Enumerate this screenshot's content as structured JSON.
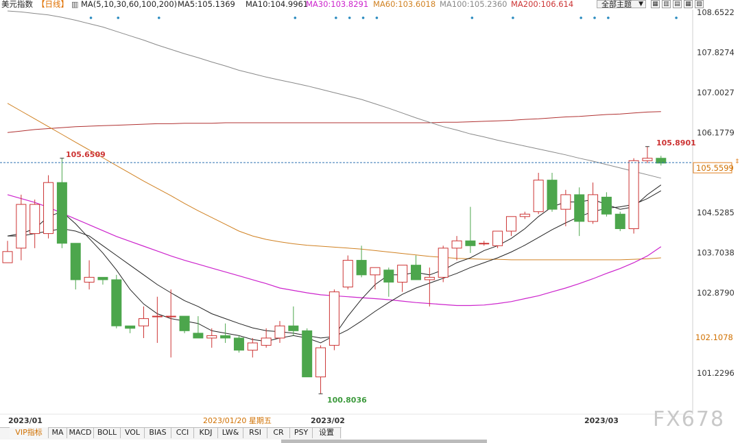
{
  "header": {
    "title": "美元指数",
    "period": "【日线】",
    "ma_icon": "chart-icon",
    "ma_params": "MA(5,10,30,60,100,200)",
    "ma5": "MA5:105.1369",
    "ma10": "MA10:104.9961",
    "ma30": "MA30:103.8291",
    "ma60": "MA60:103.6018",
    "ma100": "MA100:105.2360",
    "ma200": "MA200:106.614",
    "theme_label": "全部主题",
    "theme_arrow": "▼",
    "tools": [
      "▦",
      "▥",
      "▤",
      "▦",
      "▧"
    ]
  },
  "colors": {
    "up": "#cc3333",
    "down": "#4ca64c",
    "ma5": "#222222",
    "ma10": "#222222",
    "ma30": "#cc22cc",
    "ma60": "#d08020",
    "ma100": "#888888",
    "ma200": "#b03030",
    "current_line": "#2a6fb0"
  },
  "tabs": [
    "VIP指标",
    "MA",
    "MACD",
    "BOLL",
    "VOL",
    "BIAS",
    "CCI",
    "KDJ",
    "LW&",
    "RSI",
    "CR",
    "PSY",
    "设置"
  ],
  "watermark": "FX678",
  "chart_data": {
    "type": "candlestick",
    "y_ticks": [
      108.6522,
      107.8274,
      107.0027,
      106.1779,
      104.5285,
      103.7038,
      102.879,
      101.2296
    ],
    "ylim": [
      100.6,
      108.8
    ],
    "current_price": "105.5599",
    "overlap_label": "102.1078",
    "x_labels": [
      "2023/01",
      "2023/02",
      "2023/03"
    ],
    "cursor_date": "2023/01/20 星期五",
    "annotations": {
      "high1": "105.6509",
      "low": "100.8036",
      "high2": "105.8901"
    },
    "candles": [
      {
        "o": 103.5,
        "h": 103.95,
        "l": 103.55,
        "c": 103.73
      },
      {
        "o": 103.8,
        "h": 104.9,
        "l": 103.55,
        "c": 104.7
      },
      {
        "o": 104.1,
        "h": 104.8,
        "l": 103.8,
        "c": 104.7
      },
      {
        "o": 104.1,
        "h": 105.3,
        "l": 104.0,
        "c": 105.15
      },
      {
        "o": 105.15,
        "h": 105.65,
        "l": 103.8,
        "c": 103.9
      },
      {
        "o": 103.9,
        "h": 103.9,
        "l": 102.95,
        "c": 103.15
      },
      {
        "o": 103.1,
        "h": 103.55,
        "l": 102.95,
        "c": 103.2
      },
      {
        "o": 103.2,
        "h": 103.2,
        "l": 103.05,
        "c": 103.15
      },
      {
        "o": 103.15,
        "h": 103.25,
        "l": 102.15,
        "c": 102.2
      },
      {
        "o": 102.2,
        "h": 102.2,
        "l": 102.05,
        "c": 102.15
      },
      {
        "o": 102.2,
        "h": 102.6,
        "l": 101.95,
        "c": 102.35
      },
      {
        "o": 102.4,
        "h": 102.8,
        "l": 101.85,
        "c": 102.4
      },
      {
        "o": 102.4,
        "h": 102.95,
        "l": 101.55,
        "c": 102.4
      },
      {
        "o": 102.4,
        "h": 102.4,
        "l": 102.05,
        "c": 102.1
      },
      {
        "o": 102.05,
        "h": 102.4,
        "l": 102.0,
        "c": 101.95
      },
      {
        "o": 101.95,
        "h": 102.15,
        "l": 101.75,
        "c": 102.0
      },
      {
        "o": 102.0,
        "h": 102.25,
        "l": 101.85,
        "c": 101.95
      },
      {
        "o": 101.95,
        "h": 102.0,
        "l": 101.65,
        "c": 101.7
      },
      {
        "o": 101.7,
        "h": 101.95,
        "l": 101.55,
        "c": 101.85
      },
      {
        "o": 101.8,
        "h": 102.15,
        "l": 101.75,
        "c": 101.95
      },
      {
        "o": 101.95,
        "h": 102.3,
        "l": 101.85,
        "c": 102.2
      },
      {
        "o": 102.2,
        "h": 102.6,
        "l": 102.0,
        "c": 102.1
      },
      {
        "o": 102.1,
        "h": 102.15,
        "l": 101.2,
        "c": 101.15
      },
      {
        "o": 101.15,
        "h": 101.8,
        "l": 100.8036,
        "c": 101.75
      },
      {
        "o": 101.8,
        "h": 102.95,
        "l": 101.7,
        "c": 102.9
      },
      {
        "o": 103.0,
        "h": 103.65,
        "l": 102.95,
        "c": 103.55
      },
      {
        "o": 103.55,
        "h": 103.85,
        "l": 103.2,
        "c": 103.25
      },
      {
        "o": 103.25,
        "h": 103.4,
        "l": 102.95,
        "c": 103.4
      },
      {
        "o": 103.35,
        "h": 103.4,
        "l": 102.8,
        "c": 103.1
      },
      {
        "o": 103.1,
        "h": 103.45,
        "l": 102.9,
        "c": 103.45
      },
      {
        "o": 103.45,
        "h": 103.65,
        "l": 103.15,
        "c": 103.15
      },
      {
        "o": 103.15,
        "h": 103.4,
        "l": 102.6,
        "c": 103.2
      },
      {
        "o": 103.2,
        "h": 103.85,
        "l": 103.1,
        "c": 103.8
      },
      {
        "o": 103.8,
        "h": 104.05,
        "l": 103.55,
        "c": 103.95
      },
      {
        "o": 103.95,
        "h": 104.65,
        "l": 103.7,
        "c": 103.85
      },
      {
        "o": 103.9,
        "h": 103.95,
        "l": 103.85,
        "c": 103.9
      },
      {
        "o": 103.85,
        "h": 104.1,
        "l": 103.8,
        "c": 104.15
      },
      {
        "o": 104.15,
        "h": 104.45,
        "l": 104.05,
        "c": 104.45
      },
      {
        "o": 104.45,
        "h": 104.55,
        "l": 104.4,
        "c": 104.5
      },
      {
        "o": 104.55,
        "h": 105.35,
        "l": 104.5,
        "c": 105.2
      },
      {
        "o": 105.2,
        "h": 105.35,
        "l": 104.55,
        "c": 104.6
      },
      {
        "o": 104.6,
        "h": 105.0,
        "l": 104.25,
        "c": 104.9
      },
      {
        "o": 104.9,
        "h": 105.05,
        "l": 104.05,
        "c": 104.35
      },
      {
        "o": 104.35,
        "h": 105.15,
        "l": 104.3,
        "c": 104.9
      },
      {
        "o": 104.85,
        "h": 104.95,
        "l": 104.45,
        "c": 104.5
      },
      {
        "o": 104.5,
        "h": 104.55,
        "l": 104.15,
        "c": 104.2
      },
      {
        "o": 104.2,
        "h": 105.65,
        "l": 104.1,
        "c": 105.6
      },
      {
        "o": 105.6,
        "h": 105.8901,
        "l": 105.55,
        "c": 105.65
      },
      {
        "o": 105.65,
        "h": 105.7,
        "l": 105.5,
        "c": 105.55
      }
    ],
    "ma5": [
      104.05,
      104.1,
      104.2,
      104.45,
      104.55,
      104.3,
      104.0,
      103.7,
      103.35,
      102.95,
      102.65,
      102.45,
      102.35,
      102.3,
      102.25,
      102.1,
      102.05,
      102.0,
      101.92,
      101.88,
      101.95,
      102.0,
      101.95,
      101.85,
      102.0,
      102.4,
      102.75,
      103.05,
      103.25,
      103.25,
      103.3,
      103.25,
      103.35,
      103.5,
      103.6,
      103.75,
      103.85,
      104.0,
      104.2,
      104.45,
      104.65,
      104.75,
      104.75,
      104.8,
      104.7,
      104.6,
      104.65,
      104.9,
      105.1
    ],
    "ma10": [
      104.05,
      104.05,
      104.1,
      104.15,
      104.2,
      104.15,
      104.05,
      103.85,
      103.65,
      103.45,
      103.25,
      103.05,
      102.88,
      102.72,
      102.6,
      102.45,
      102.35,
      102.25,
      102.16,
      102.1,
      102.08,
      102.05,
      102.0,
      101.95,
      101.98,
      102.12,
      102.3,
      102.5,
      102.68,
      102.85,
      102.98,
      103.08,
      103.18,
      103.28,
      103.4,
      103.5,
      103.6,
      103.72,
      103.86,
      104.02,
      104.18,
      104.32,
      104.45,
      104.55,
      104.62,
      104.65,
      104.7,
      104.82,
      104.98
    ],
    "ma30": [
      104.9,
      104.82,
      104.74,
      104.64,
      104.52,
      104.4,
      104.28,
      104.16,
      104.04,
      103.94,
      103.84,
      103.74,
      103.64,
      103.55,
      103.47,
      103.39,
      103.31,
      103.23,
      103.15,
      103.07,
      102.98,
      102.93,
      102.88,
      102.84,
      102.82,
      102.8,
      102.78,
      102.76,
      102.74,
      102.71,
      102.68,
      102.66,
      102.64,
      102.62,
      102.62,
      102.63,
      102.66,
      102.7,
      102.76,
      102.82,
      102.9,
      102.98,
      103.07,
      103.17,
      103.28,
      103.38,
      103.5,
      103.64,
      103.83
    ],
    "ma60": [
      106.78,
      106.62,
      106.46,
      106.3,
      106.14,
      105.98,
      105.82,
      105.66,
      105.5,
      105.34,
      105.18,
      105.03,
      104.88,
      104.72,
      104.57,
      104.43,
      104.29,
      104.15,
      104.05,
      103.98,
      103.93,
      103.89,
      103.86,
      103.84,
      103.82,
      103.8,
      103.78,
      103.75,
      103.72,
      103.69,
      103.66,
      103.63,
      103.61,
      103.59,
      103.58,
      103.57,
      103.57,
      103.56,
      103.56,
      103.56,
      103.56,
      103.56,
      103.56,
      103.56,
      103.56,
      103.56,
      103.57,
      103.58,
      103.6
    ],
    "ma100": [
      108.68,
      108.66,
      108.63,
      108.6,
      108.55,
      108.49,
      108.42,
      108.35,
      108.26,
      108.17,
      108.08,
      107.98,
      107.89,
      107.8,
      107.72,
      107.63,
      107.55,
      107.46,
      107.39,
      107.32,
      107.26,
      107.2,
      107.14,
      107.07,
      107.0,
      106.93,
      106.86,
      106.77,
      106.68,
      106.58,
      106.48,
      106.39,
      106.3,
      106.23,
      106.15,
      106.09,
      106.02,
      105.96,
      105.9,
      105.84,
      105.78,
      105.72,
      105.65,
      105.59,
      105.52,
      105.45,
      105.38,
      105.31,
      105.24
    ],
    "ma200": [
      106.18,
      106.21,
      106.24,
      106.26,
      106.28,
      106.3,
      106.31,
      106.32,
      106.33,
      106.34,
      106.35,
      106.36,
      106.36,
      106.37,
      106.37,
      106.37,
      106.38,
      106.38,
      106.38,
      106.38,
      106.38,
      106.38,
      106.38,
      106.38,
      106.38,
      106.38,
      106.38,
      106.38,
      106.38,
      106.38,
      106.38,
      106.38,
      106.39,
      106.39,
      106.4,
      106.41,
      106.42,
      106.43,
      106.45,
      106.46,
      106.48,
      106.5,
      106.51,
      106.53,
      106.55,
      106.56,
      106.58,
      106.6,
      106.61
    ]
  }
}
